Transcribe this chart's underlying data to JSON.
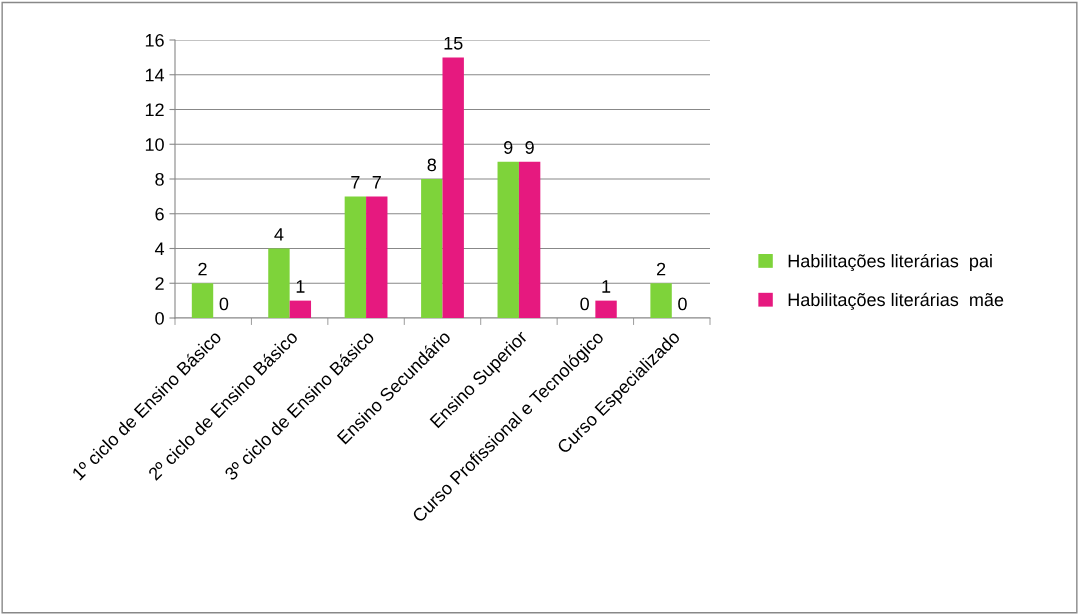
{
  "chart_data": {
    "type": "bar",
    "categories": [
      "1º ciclo de Ensino Básico",
      "2º ciclo de Ensino Básico",
      "3º ciclo de Ensino Básico",
      "Ensino Secundário",
      "Ensino Superior",
      "Curso Profissional e Tecnológico",
      "Curso Especializado"
    ],
    "series": [
      {
        "name": "Habilitações literárias  pai",
        "color": "#7ed33a",
        "values": [
          2,
          4,
          7,
          8,
          9,
          0,
          2
        ]
      },
      {
        "name": "Habilitações literárias  mãe",
        "color": "#e6197f",
        "values": [
          0,
          1,
          7,
          15,
          9,
          1,
          0
        ]
      }
    ],
    "ylim": [
      0,
      16
    ],
    "yticks": [
      0,
      2,
      4,
      6,
      8,
      10,
      12,
      14,
      16
    ],
    "grid": "y",
    "legend": "right",
    "data_labels": true
  }
}
